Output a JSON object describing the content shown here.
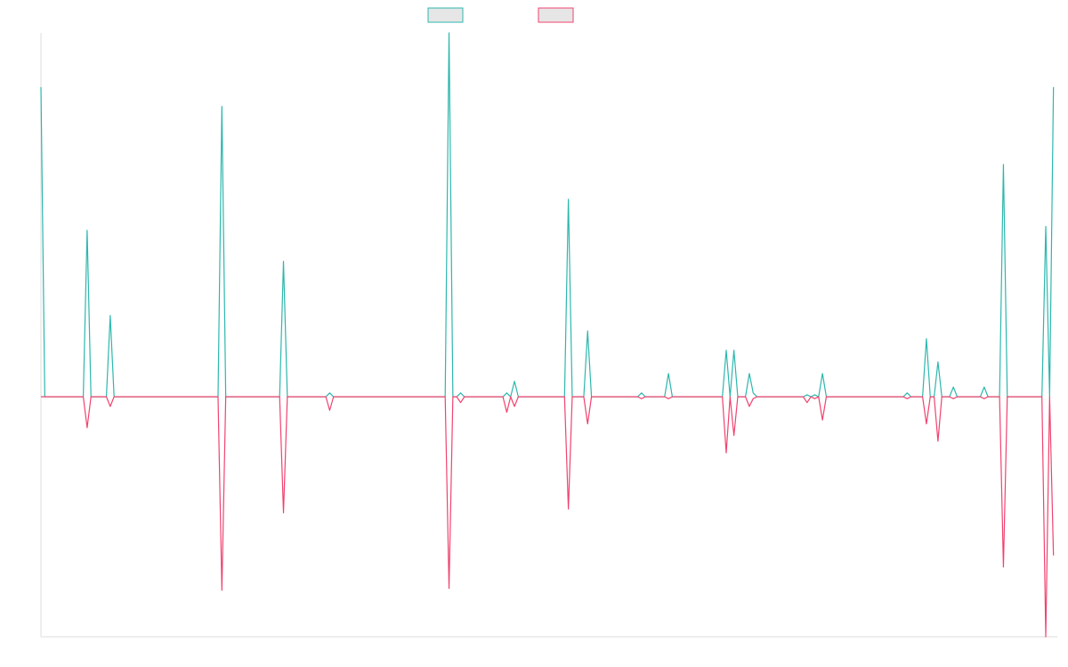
{
  "chart_data": {
    "type": "line",
    "title": "",
    "xlabel": "",
    "ylabel": "",
    "grid": false,
    "legend": {
      "placement": "top-center",
      "entries": [
        {
          "series_index": 0,
          "label": ""
        },
        {
          "series_index": 1,
          "label": ""
        }
      ]
    },
    "xlim": [
      0,
      264
    ],
    "ylim": [
      -6.2,
      9.4
    ],
    "colors": {
      "series_1": "#2db7ad",
      "series_2": "#f0436f",
      "axis": "#dddddd",
      "legend_fill": "#e6e6e6"
    },
    "series": [
      {
        "points": [
          [
            0,
            8
          ],
          [
            1,
            0
          ],
          [
            11,
            0
          ],
          [
            12,
            4.3
          ],
          [
            13,
            0
          ],
          [
            17,
            0
          ],
          [
            18,
            2.1
          ],
          [
            19,
            0
          ],
          [
            46,
            0
          ],
          [
            47,
            7.5
          ],
          [
            48,
            0
          ],
          [
            62,
            0
          ],
          [
            63,
            3.5
          ],
          [
            64,
            0
          ],
          [
            74,
            0
          ],
          [
            75,
            0.1
          ],
          [
            76,
            0
          ],
          [
            105,
            0
          ],
          [
            106,
            9.4
          ],
          [
            107,
            0
          ],
          [
            108,
            0
          ],
          [
            109,
            0.1
          ],
          [
            110,
            0
          ],
          [
            120,
            0
          ],
          [
            121,
            0.1
          ],
          [
            122,
            0
          ],
          [
            123,
            0.4
          ],
          [
            124,
            0
          ],
          [
            136,
            0
          ],
          [
            137,
            5.1
          ],
          [
            138,
            0
          ],
          [
            141,
            0
          ],
          [
            142,
            1.7
          ],
          [
            143,
            0
          ],
          [
            155,
            0
          ],
          [
            156,
            0.1
          ],
          [
            157,
            0
          ],
          [
            162,
            0
          ],
          [
            163,
            0.6
          ],
          [
            164,
            0
          ],
          [
            177,
            0
          ],
          [
            178,
            1.2
          ],
          [
            179,
            0
          ],
          [
            180,
            1.2
          ],
          [
            181,
            0
          ],
          [
            183,
            0
          ],
          [
            184,
            0.6
          ],
          [
            185,
            0.1
          ],
          [
            186,
            0
          ],
          [
            198,
            0
          ],
          [
            199,
            0.05
          ],
          [
            200,
            0
          ],
          [
            201,
            0.05
          ],
          [
            202,
            0
          ],
          [
            203,
            0.6
          ],
          [
            204,
            0
          ],
          [
            224,
            0
          ],
          [
            225,
            0.1
          ],
          [
            226,
            0
          ],
          [
            229,
            0
          ],
          [
            230,
            1.5
          ],
          [
            231,
            0
          ],
          [
            232,
            0
          ],
          [
            233,
            0.9
          ],
          [
            234,
            0
          ],
          [
            236,
            0
          ],
          [
            237,
            0.25
          ],
          [
            238,
            0
          ],
          [
            244,
            0
          ],
          [
            245,
            0.25
          ],
          [
            246,
            0
          ],
          [
            249,
            0
          ],
          [
            250,
            6.0
          ],
          [
            251,
            0
          ],
          [
            260,
            0
          ],
          [
            261,
            4.4
          ],
          [
            262,
            0
          ],
          [
            263,
            8.0
          ]
        ]
      },
      {
        "points": [
          [
            0,
            0
          ],
          [
            11,
            0
          ],
          [
            12,
            -0.8
          ],
          [
            13,
            0
          ],
          [
            17,
            0
          ],
          [
            18,
            -0.25
          ],
          [
            19,
            0
          ],
          [
            46,
            0
          ],
          [
            47,
            -5.0
          ],
          [
            48,
            0
          ],
          [
            62,
            0
          ],
          [
            63,
            -3.0
          ],
          [
            64,
            0
          ],
          [
            74,
            0
          ],
          [
            75,
            -0.35
          ],
          [
            76,
            0
          ],
          [
            105,
            0
          ],
          [
            106,
            -4.95
          ],
          [
            107,
            0
          ],
          [
            108,
            0
          ],
          [
            109,
            -0.15
          ],
          [
            110,
            0
          ],
          [
            120,
            0
          ],
          [
            121,
            -0.4
          ],
          [
            122,
            0
          ],
          [
            123,
            -0.25
          ],
          [
            124,
            0
          ],
          [
            136,
            0
          ],
          [
            137,
            -2.9
          ],
          [
            138,
            0
          ],
          [
            141,
            0
          ],
          [
            142,
            -0.7
          ],
          [
            143,
            0
          ],
          [
            155,
            0
          ],
          [
            156,
            -0.05
          ],
          [
            157,
            0
          ],
          [
            162,
            0
          ],
          [
            163,
            -0.05
          ],
          [
            164,
            0
          ],
          [
            177,
            0
          ],
          [
            178,
            -1.45
          ],
          [
            179,
            0
          ],
          [
            180,
            -1.0
          ],
          [
            181,
            0
          ],
          [
            183,
            0
          ],
          [
            184,
            -0.25
          ],
          [
            185,
            -0.05
          ],
          [
            186,
            0
          ],
          [
            198,
            0
          ],
          [
            199,
            -0.15
          ],
          [
            200,
            0
          ],
          [
            201,
            -0.05
          ],
          [
            202,
            0
          ],
          [
            203,
            -0.6
          ],
          [
            204,
            0
          ],
          [
            224,
            0
          ],
          [
            225,
            -0.05
          ],
          [
            226,
            0
          ],
          [
            229,
            0
          ],
          [
            230,
            -0.7
          ],
          [
            231,
            0
          ],
          [
            232,
            0
          ],
          [
            233,
            -1.15
          ],
          [
            234,
            0
          ],
          [
            236,
            0
          ],
          [
            237,
            -0.05
          ],
          [
            238,
            0
          ],
          [
            244,
            0
          ],
          [
            245,
            -0.05
          ],
          [
            246,
            0
          ],
          [
            249,
            0
          ],
          [
            250,
            -4.4
          ],
          [
            251,
            0
          ],
          [
            260,
            0
          ],
          [
            261,
            -6.2
          ],
          [
            262,
            0
          ],
          [
            263,
            -4.1
          ]
        ]
      }
    ]
  }
}
